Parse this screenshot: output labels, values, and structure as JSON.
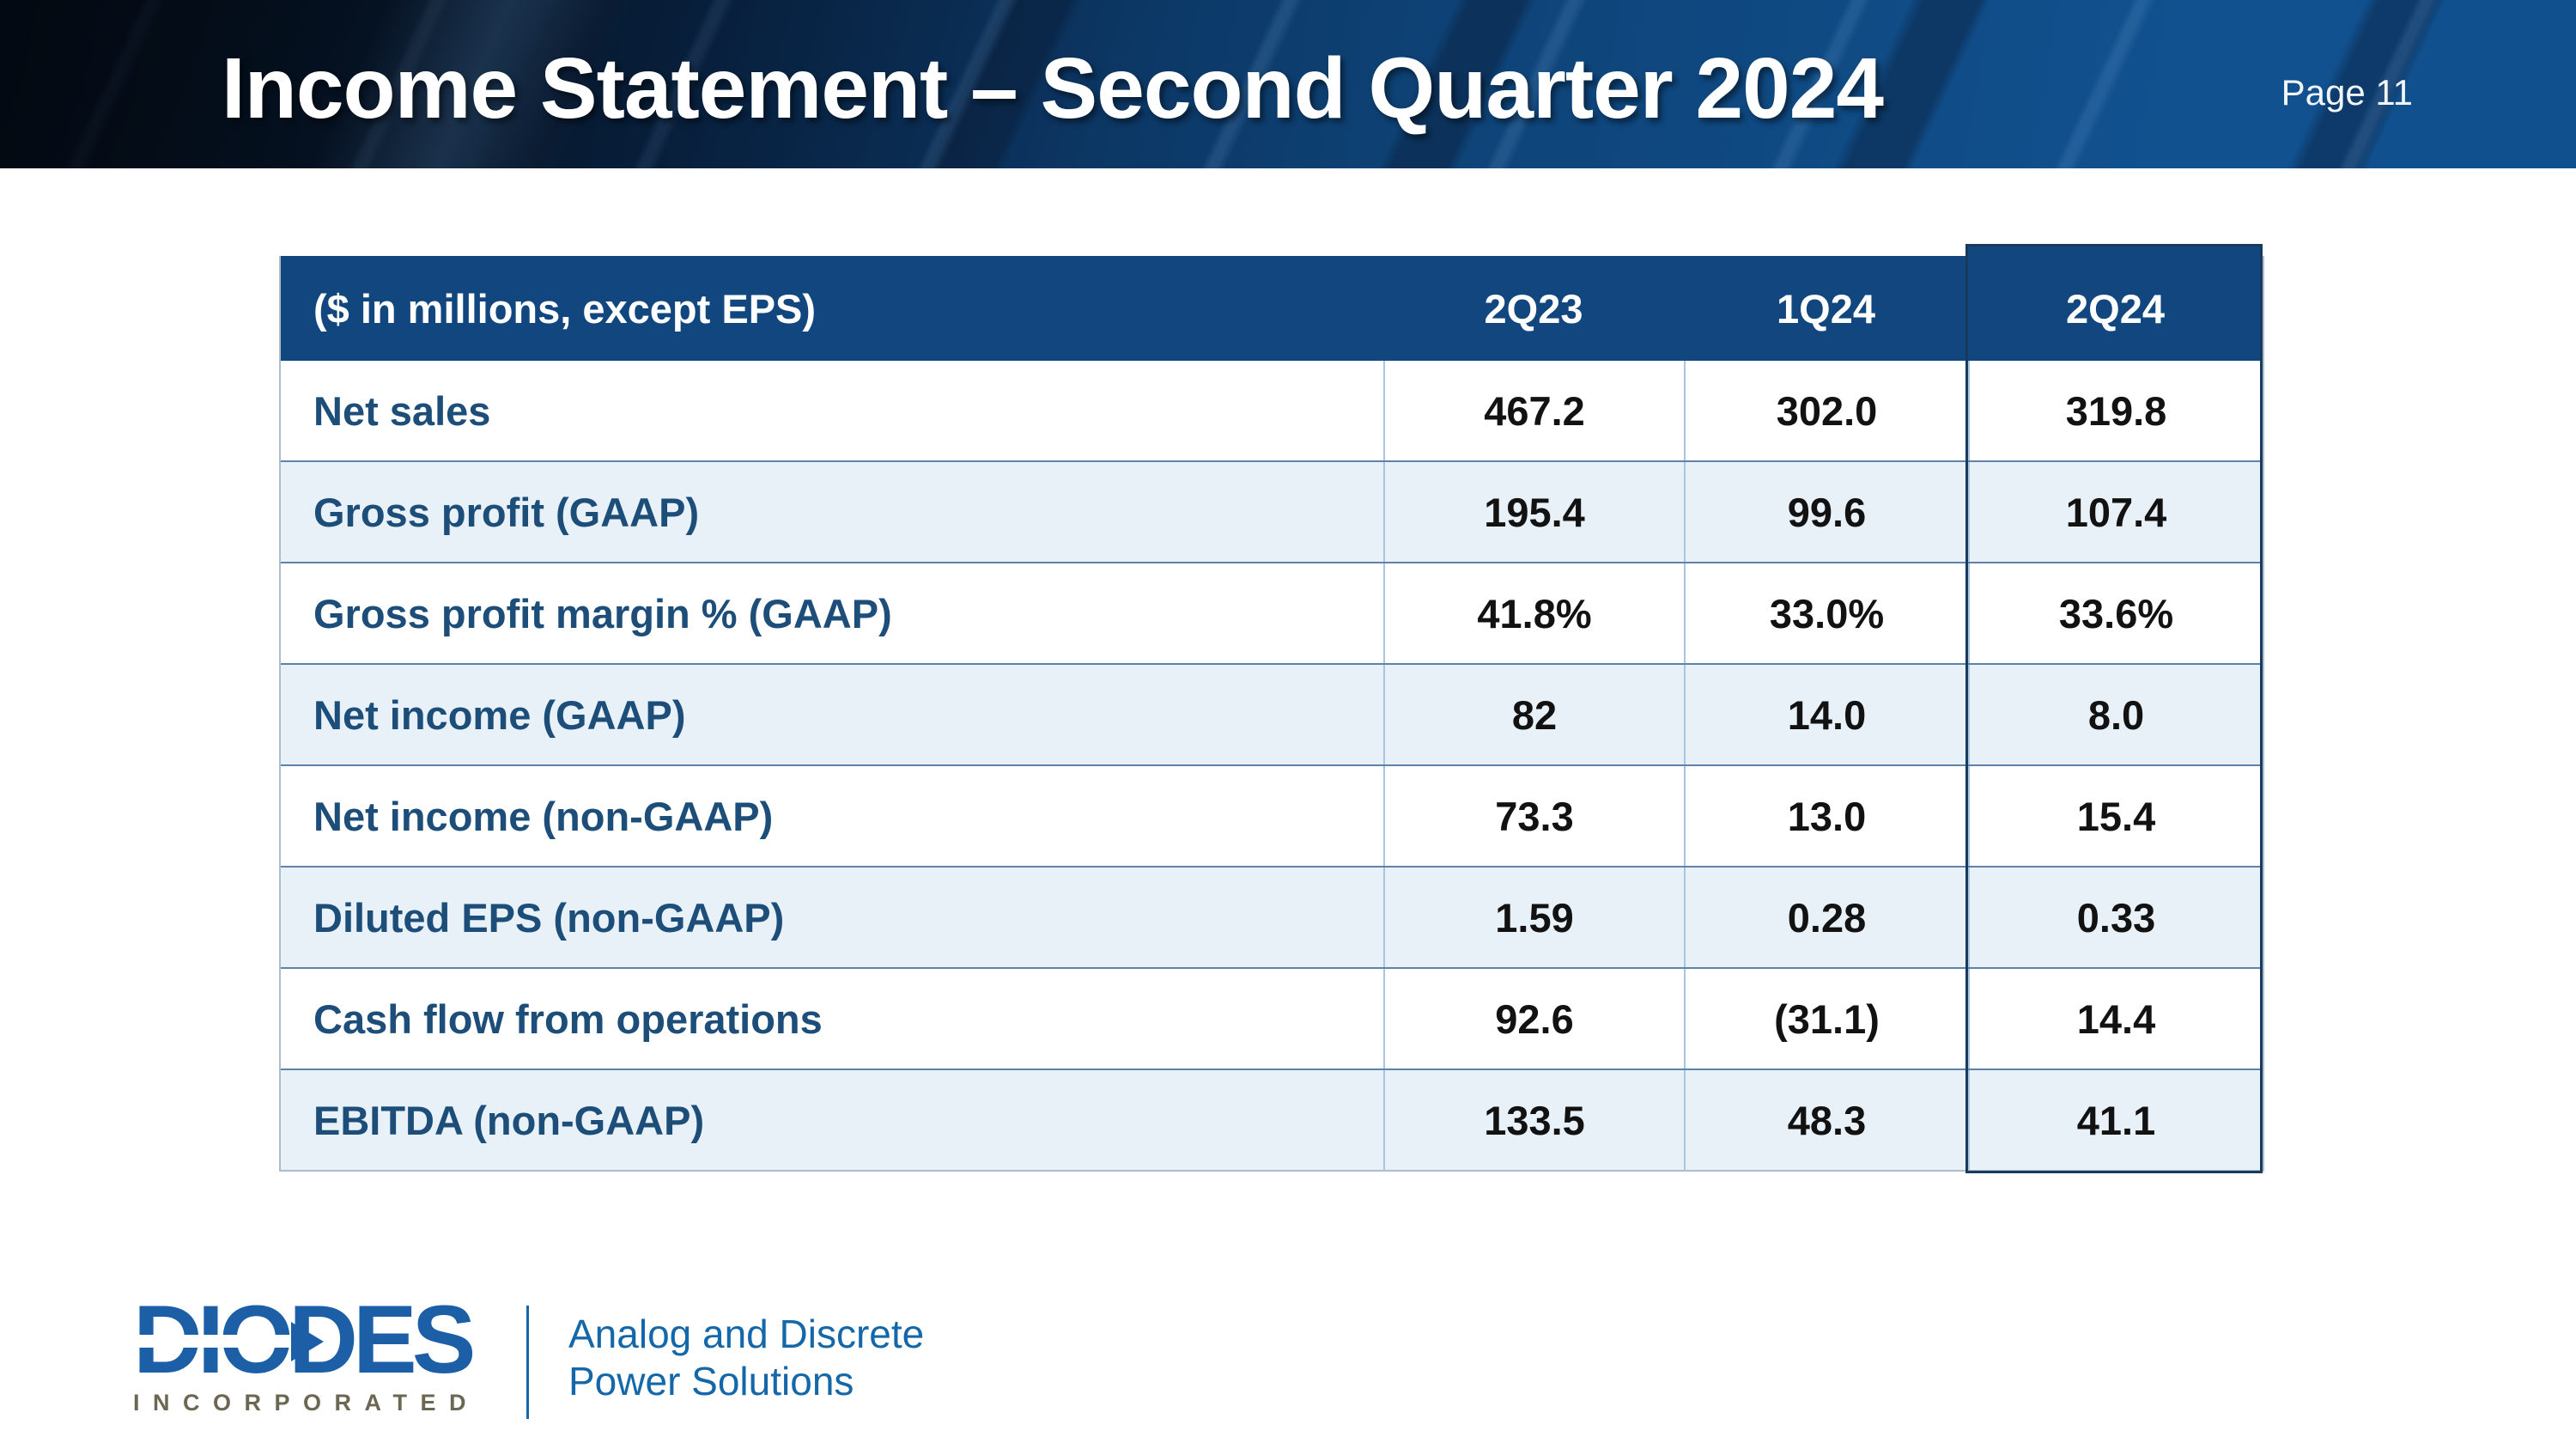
{
  "slide": {
    "title": "Income Statement – Second Quarter 2024",
    "page_label": "Page 11"
  },
  "table": {
    "header": {
      "label": "($ in millions, except EPS)",
      "columns": [
        "2Q23",
        "1Q24",
        "2Q24"
      ],
      "highlighted_column": "2Q24"
    },
    "rows": [
      {
        "label": "Net sales",
        "values": [
          "467.2",
          "302.0",
          "319.8"
        ]
      },
      {
        "label": "Gross profit (GAAP)",
        "values": [
          "195.4",
          "99.6",
          "107.4"
        ]
      },
      {
        "label": "Gross profit margin % (GAAP)",
        "values": [
          "41.8%",
          "33.0%",
          "33.6%"
        ]
      },
      {
        "label": "Net income (GAAP)",
        "values": [
          "82",
          "14.0",
          "8.0"
        ]
      },
      {
        "label": "Net income (non-GAAP)",
        "values": [
          "73.3",
          "13.0",
          "15.4"
        ]
      },
      {
        "label": "Diluted EPS (non-GAAP)",
        "values": [
          "1.59",
          "0.28",
          "0.33"
        ]
      },
      {
        "label": "Cash flow from operations",
        "values": [
          "92.6",
          "(31.1)",
          "14.4"
        ]
      },
      {
        "label": "EBITDA (non-GAAP)",
        "values": [
          "133.5",
          "48.3",
          "41.1"
        ]
      }
    ]
  },
  "footer": {
    "logo_word": "DIODES",
    "logo_subtext": "INCORPORATED",
    "tagline_line1": "Analog and Discrete",
    "tagline_line2": "Power Solutions"
  },
  "colors": {
    "banner_blue": "#11518f",
    "table_header_navy": "#11477e",
    "highlight_border_navy": "#173a5e",
    "row_alt_blue": "#e9f1f8",
    "row_separator": "#5d84a8",
    "label_blue": "#1d4e79",
    "logo_blue": "#1d5fa7",
    "incorporated_gray": "#6b6753",
    "tagline_blue": "#1467a8"
  }
}
